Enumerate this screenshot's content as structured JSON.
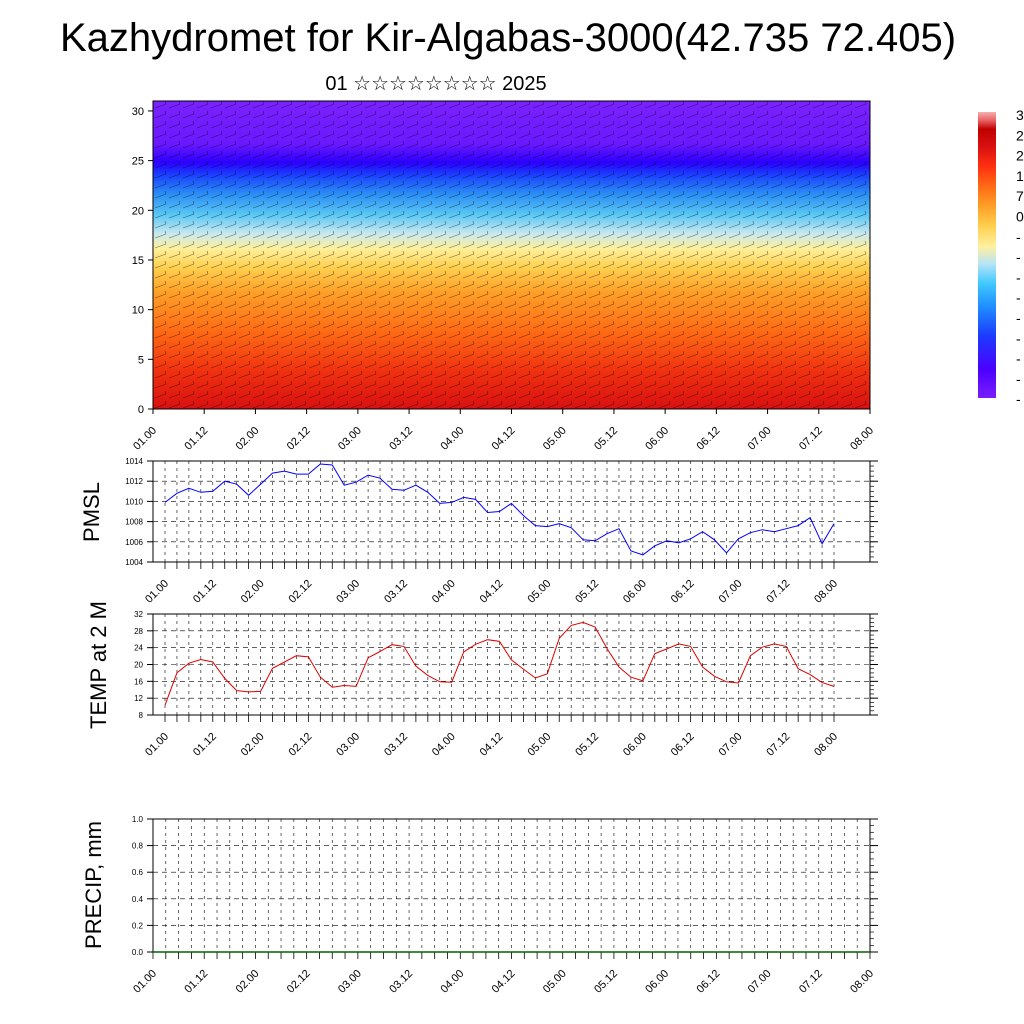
{
  "title": "Kazhydromet for Kir-Algabas-3000(42.735 72.405)",
  "subtitle": "01 ☆☆☆☆☆☆☆☆ 2025",
  "colors": {
    "pmsl_line": "#0000ff",
    "temp_line": "#e00000",
    "precip_line": "#006400",
    "colorbar": [
      "#7a1dff",
      "#4a00ff",
      "#1c3cff",
      "#1f8fff",
      "#3fc8ff",
      "#b8e4f5",
      "#fff0a0",
      "#ffe060",
      "#ffbb30",
      "#ff9020",
      "#ff5010",
      "#e01010",
      "#c00000",
      "#e86060",
      "#f5b0b0"
    ]
  },
  "chart_data": [
    {
      "type": "heatmap",
      "name": "vertical-profile",
      "xlabel": "",
      "ylabel": "",
      "x_tick_labels": [
        "01.00",
        "01.12",
        "02.00",
        "02.12",
        "03.00",
        "03.12",
        "04.00",
        "04.12",
        "05.00",
        "05.12",
        "06.00",
        "06.12",
        "07.00",
        "07.12",
        "08.00"
      ],
      "y_tick_labels": [
        "0",
        "5",
        "10",
        "15",
        "20",
        "25",
        "30"
      ],
      "ylim": [
        0,
        31
      ],
      "colorbar_labels": [
        "3",
        "2",
        "2",
        "1",
        "7",
        "0",
        "-",
        "-",
        "-",
        "-",
        "-",
        "-",
        "-",
        "-",
        "-"
      ],
      "overlay": "wind barbs"
    },
    {
      "type": "line",
      "name": "pmsl",
      "ylabel": "PMSL",
      "x_tick_labels": [
        "01.00",
        "01.12",
        "02.00",
        "02.12",
        "03.00",
        "03.12",
        "04.00",
        "04.12",
        "05.00",
        "05.12",
        "06.00",
        "06.12",
        "07.00",
        "07.12",
        "08.00"
      ],
      "y_tick_labels": [
        "1004",
        "1006",
        "1008",
        "1010",
        "1012",
        "1014"
      ],
      "ylim": [
        1004,
        1014
      ],
      "grid": true,
      "values": [
        1009.9,
        1010.8,
        1011.3,
        1010.9,
        1011.0,
        1012.0,
        1011.7,
        1010.6,
        1011.7,
        1012.8,
        1013.0,
        1012.7,
        1012.7,
        1013.7,
        1013.6,
        1011.6,
        1011.9,
        1012.6,
        1012.3,
        1011.2,
        1011.1,
        1011.6,
        1010.9,
        1009.8,
        1009.9,
        1010.4,
        1010.2,
        1008.9,
        1009.0,
        1009.8,
        1008.6,
        1007.6,
        1007.5,
        1007.8,
        1007.4,
        1006.2,
        1006.1,
        1006.8,
        1007.3,
        1005.1,
        1004.7,
        1005.6,
        1006.1,
        1005.9,
        1006.3,
        1007.0,
        1006.2,
        1004.9,
        1006.3,
        1006.9,
        1007.2,
        1007.0,
        1007.3,
        1007.6,
        1008.4,
        1005.8,
        1007.8
      ]
    },
    {
      "type": "line",
      "name": "temp-2m",
      "ylabel": "TEMP at 2 M",
      "x_tick_labels": [
        "01.00",
        "01.12",
        "02.00",
        "02.12",
        "03.00",
        "03.12",
        "04.00",
        "04.12",
        "05.00",
        "05.12",
        "06.00",
        "06.12",
        "07.00",
        "07.12",
        "08.00"
      ],
      "y_tick_labels": [
        "8",
        "12",
        "16",
        "20",
        "24",
        "28",
        "32"
      ],
      "ylim": [
        8,
        32
      ],
      "grid": true,
      "values": [
        10.3,
        18.0,
        20.3,
        21.2,
        20.6,
        16.7,
        13.8,
        13.5,
        13.6,
        19.1,
        20.6,
        22.1,
        21.8,
        17.0,
        14.6,
        15.0,
        14.8,
        21.6,
        23.1,
        24.7,
        24.3,
        19.6,
        17.4,
        15.9,
        15.8,
        23.0,
        24.8,
        25.9,
        25.5,
        21.1,
        18.9,
        16.8,
        17.8,
        26.2,
        29.3,
        30.0,
        28.9,
        23.8,
        19.4,
        17.0,
        16.1,
        22.6,
        23.7,
        24.9,
        24.3,
        19.4,
        17.2,
        15.9,
        15.6,
        22.1,
        24.1,
        24.9,
        24.3,
        19.0,
        17.6,
        15.7,
        14.8
      ]
    },
    {
      "type": "line",
      "name": "precip",
      "ylabel": "PRECIP, mm",
      "x_tick_labels": [
        "01.00",
        "01.12",
        "02.00",
        "02.12",
        "03.00",
        "03.12",
        "04.00",
        "04.12",
        "05.00",
        "05.12",
        "06.00",
        "06.12",
        "07.00",
        "07.12",
        "08.00"
      ],
      "y_tick_labels": [
        "0.0",
        "0.2",
        "0.4",
        "0.6",
        "0.8",
        "1.0"
      ],
      "ylim": [
        0,
        1
      ],
      "grid": true,
      "values": [
        0,
        0,
        0,
        0,
        0,
        0,
        0,
        0,
        0,
        0,
        0,
        0,
        0,
        0,
        0,
        0,
        0,
        0,
        0,
        0,
        0,
        0,
        0,
        0,
        0,
        0,
        0,
        0,
        0,
        0,
        0,
        0,
        0,
        0,
        0,
        0,
        0,
        0,
        0,
        0,
        0,
        0,
        0,
        0,
        0,
        0,
        0,
        0,
        0,
        0,
        0,
        0,
        0,
        0,
        0,
        0,
        0
      ]
    }
  ]
}
